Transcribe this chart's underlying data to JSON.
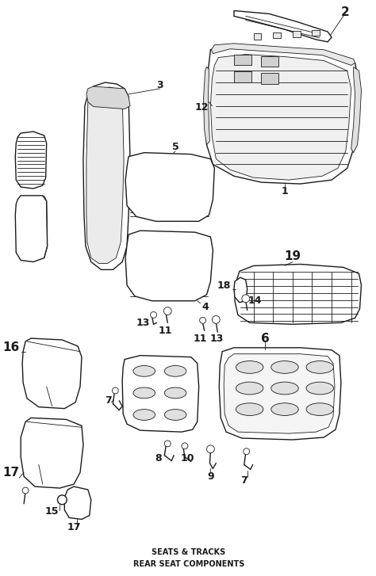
{
  "title": "REAR SEAT COMPONENTS",
  "header": "SEATS & TRACKS",
  "bg_color": "#ffffff",
  "line_color": "#1a1a1a",
  "fig_width": 4.74,
  "fig_height": 7.27,
  "dpi": 100
}
